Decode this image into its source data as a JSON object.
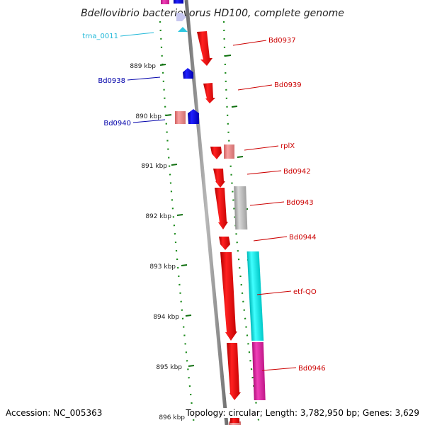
{
  "title": "Bdellovibrio bacteriovorus HD100, complete genome",
  "footer": {
    "accession": "Accession: NC_005363",
    "topology": "Topology: circular; Length: 3,782,950 bp; Genes: 3,629"
  },
  "colors": {
    "forward_gene": "#ff0000",
    "reverse_gene": "#0000ff",
    "trna": "#00b0e0",
    "light_forward": "#f08080",
    "gray_feature": "#b4b4b4",
    "cyan_feature": "#00e8e8",
    "magenta_feature": "#e020a0",
    "tick_green": "#107010"
  },
  "ticks": [
    "889 kbp",
    "890 kbp",
    "891 kbp",
    "892 kbp",
    "893 kbp",
    "894 kbp",
    "895 kbp",
    "896 kbp"
  ],
  "labels": [
    {
      "text": "trna_0011",
      "color": "#20b8d8"
    },
    {
      "text": "Bd0937",
      "color": "#cc0000"
    },
    {
      "text": "Bd0938",
      "color": "#0000aa"
    },
    {
      "text": "Bd0939",
      "color": "#cc0000"
    },
    {
      "text": "Bd0940",
      "color": "#0000aa"
    },
    {
      "text": "rplX",
      "color": "#cc0000"
    },
    {
      "text": "Bd0942",
      "color": "#cc0000"
    },
    {
      "text": "Bd0943",
      "color": "#cc0000"
    },
    {
      "text": "Bd0944",
      "color": "#cc0000"
    },
    {
      "text": "etf-QO",
      "color": "#cc0000"
    },
    {
      "text": "Bd0946",
      "color": "#cc0000"
    }
  ]
}
